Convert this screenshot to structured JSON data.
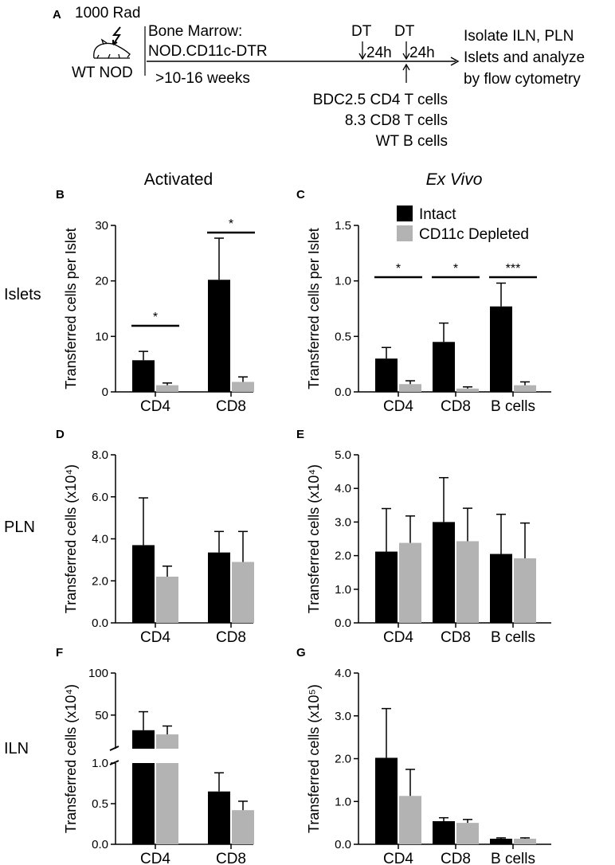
{
  "schema": {
    "panel_a": "A",
    "dose": "1000 Rad",
    "host": "WT NOD",
    "bm_line1": "Bone Marrow:",
    "bm_line2": "NOD.CD11c-DTR",
    "duration": ">10-16 weeks",
    "dt": "DT",
    "interval": "24h",
    "outcome": [
      "Isolate ILN, PLN",
      "Islets and analyze",
      "by flow cytometry"
    ],
    "transferred": [
      "BDC2.5 CD4 T cells",
      "8.3 CD8 T cells",
      "WT B cells"
    ]
  },
  "column_titles": {
    "left": "Activated",
    "right": "Ex Vivo"
  },
  "row_labels": {
    "islets": "Islets",
    "pln": "PLN",
    "iln": "ILN"
  },
  "legend": [
    {
      "label": "Intact",
      "color": "#000000"
    },
    {
      "label": "CD11c Depleted",
      "color": "#b3b3b3"
    }
  ],
  "colors": {
    "intact": "#000000",
    "depleted": "#b3b3b3"
  },
  "chart_data": [
    {
      "id": "B",
      "type": "bar",
      "panel_label": "B",
      "ylabel": "Transferred cells per Islet",
      "ylim": [
        0,
        30
      ],
      "yticks": [
        "0",
        "10",
        "20",
        "30"
      ],
      "categories": [
        "CD4",
        "CD8"
      ],
      "series": [
        {
          "name": "Intact",
          "values": [
            5.7,
            20.2
          ],
          "errors": [
            1.6,
            7.5
          ]
        },
        {
          "name": "CD11c Depleted",
          "values": [
            1.2,
            1.8
          ],
          "errors": [
            0.4,
            0.9
          ]
        }
      ],
      "significance": [
        "*",
        "*"
      ]
    },
    {
      "id": "C",
      "type": "bar",
      "panel_label": "C",
      "ylabel": "Transferred cells per Islet",
      "ylim": [
        0,
        1.5
      ],
      "yticks": [
        "0.0",
        "0.5",
        "1.0",
        "1.5"
      ],
      "categories": [
        "CD4",
        "CD8",
        "B cells"
      ],
      "series": [
        {
          "name": "Intact",
          "values": [
            0.3,
            0.45,
            0.77
          ],
          "errors": [
            0.1,
            0.17,
            0.21
          ]
        },
        {
          "name": "CD11c Depleted",
          "values": [
            0.07,
            0.03,
            0.06
          ],
          "errors": [
            0.03,
            0.015,
            0.03
          ]
        }
      ],
      "significance": [
        "*",
        "*",
        "***"
      ]
    },
    {
      "id": "D",
      "type": "bar",
      "panel_label": "D",
      "ylabel": "Transferred cells (x10⁴)",
      "ylim": [
        0,
        8
      ],
      "yticks": [
        "0.0",
        "2.0",
        "4.0",
        "6.0",
        "8.0"
      ],
      "categories": [
        "CD4",
        "CD8"
      ],
      "series": [
        {
          "name": "Intact",
          "values": [
            3.7,
            3.35
          ],
          "errors": [
            2.25,
            1.0
          ]
        },
        {
          "name": "CD11c Depleted",
          "values": [
            2.2,
            2.9
          ],
          "errors": [
            0.5,
            1.45
          ]
        }
      ],
      "significance": []
    },
    {
      "id": "E",
      "type": "bar",
      "panel_label": "E",
      "ylabel": "Transferred cells (x10⁴)",
      "ylim": [
        0,
        5
      ],
      "yticks": [
        "0.0",
        "1.0",
        "2.0",
        "3.0",
        "4.0",
        "5.0"
      ],
      "categories": [
        "CD4",
        "CD8",
        "B cells"
      ],
      "series": [
        {
          "name": "Intact",
          "values": [
            2.12,
            3.0,
            2.05
          ],
          "errors": [
            1.28,
            1.32,
            1.18
          ]
        },
        {
          "name": "CD11c Depleted",
          "values": [
            2.38,
            2.43,
            1.92
          ],
          "errors": [
            0.8,
            0.98,
            1.05
          ]
        }
      ],
      "significance": []
    },
    {
      "id": "F",
      "type": "bar",
      "panel_label": "F",
      "ylabel": "Transferred cells (x10⁴)",
      "yaxis_break": true,
      "lower_ylim": [
        0,
        1.0
      ],
      "lower_yticks": [
        "0.0",
        "0.5",
        "1.0"
      ],
      "upper_ylim": [
        10,
        100
      ],
      "upper_yticks": [
        "50",
        "100"
      ],
      "categories": [
        "CD4",
        "CD8"
      ],
      "series": [
        {
          "name": "Intact",
          "values": [
            32,
            0.65
          ],
          "errors": [
            22,
            0.23
          ]
        },
        {
          "name": "CD11c Depleted",
          "values": [
            27,
            0.42
          ],
          "errors": [
            10,
            0.11
          ]
        }
      ],
      "significance": []
    },
    {
      "id": "G",
      "type": "bar",
      "panel_label": "G",
      "ylabel": "Transferred cells (x10⁵)",
      "ylim": [
        0,
        4
      ],
      "yticks": [
        "0.0",
        "1.0",
        "2.0",
        "3.0",
        "4.0"
      ],
      "categories": [
        "CD4",
        "CD8",
        "B cells"
      ],
      "series": [
        {
          "name": "Intact",
          "values": [
            2.02,
            0.54,
            0.13
          ],
          "errors": [
            1.15,
            0.08,
            0.02
          ]
        },
        {
          "name": "CD11c Depleted",
          "values": [
            1.13,
            0.5,
            0.13
          ],
          "errors": [
            0.62,
            0.08,
            0.02
          ]
        }
      ],
      "significance": []
    }
  ]
}
